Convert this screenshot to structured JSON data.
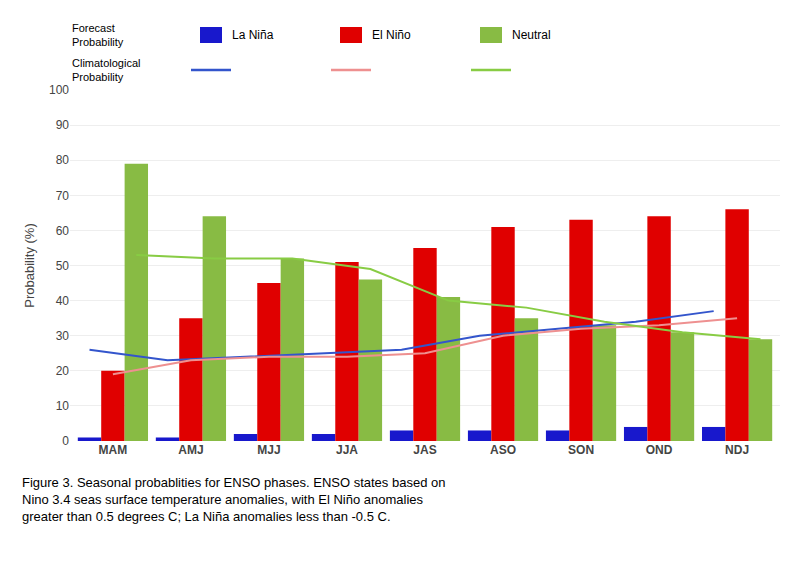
{
  "chart_data": {
    "type": "bar",
    "categories": [
      "MAM",
      "AMJ",
      "MJJ",
      "JJA",
      "JAS",
      "ASO",
      "SON",
      "OND",
      "NDJ"
    ],
    "series": [
      {
        "name": "La Niña",
        "type": "bar",
        "color": "#1818cc",
        "values": [
          1,
          1,
          2,
          2,
          3,
          3,
          3,
          4,
          4
        ]
      },
      {
        "name": "El Niño",
        "type": "bar",
        "color": "#e00000",
        "values": [
          20,
          35,
          45,
          51,
          55,
          61,
          63,
          64,
          66
        ]
      },
      {
        "name": "Neutral",
        "type": "bar",
        "color": "#88bb44",
        "values": [
          79,
          64,
          52,
          46,
          41,
          35,
          33,
          31,
          29
        ]
      },
      {
        "name": "La Niña",
        "type": "line",
        "color": "#3355cc",
        "values": [
          26,
          23,
          24,
          25,
          26,
          30,
          32,
          34,
          37
        ]
      },
      {
        "name": "El Niño",
        "type": "line",
        "color": "#ee9090",
        "values": [
          19,
          23,
          24,
          24,
          25,
          30,
          32,
          33,
          35
        ]
      },
      {
        "name": "Neutral",
        "type": "line",
        "color": "#88cc44",
        "values": [
          53,
          52,
          52,
          49,
          40,
          38,
          34,
          31,
          29
        ]
      }
    ],
    "ylabel": "Probability (%)",
    "ylim": [
      0,
      100
    ],
    "yticks": [
      0,
      10,
      20,
      30,
      40,
      50,
      60,
      70,
      80,
      90,
      100
    ],
    "grid": true,
    "annotations": [
      "Forecast\nProbability",
      "Climatological\nProbability",
      "Figure 3. Seasonal probablities for ENSO phases. ENSO states based on",
      "Nino 3.4 seas surface temperature anomalies, with El Niño anomalies",
      "greater than 0.5 degrees C; La Niña anomalies less than -0.5 C."
    ]
  }
}
